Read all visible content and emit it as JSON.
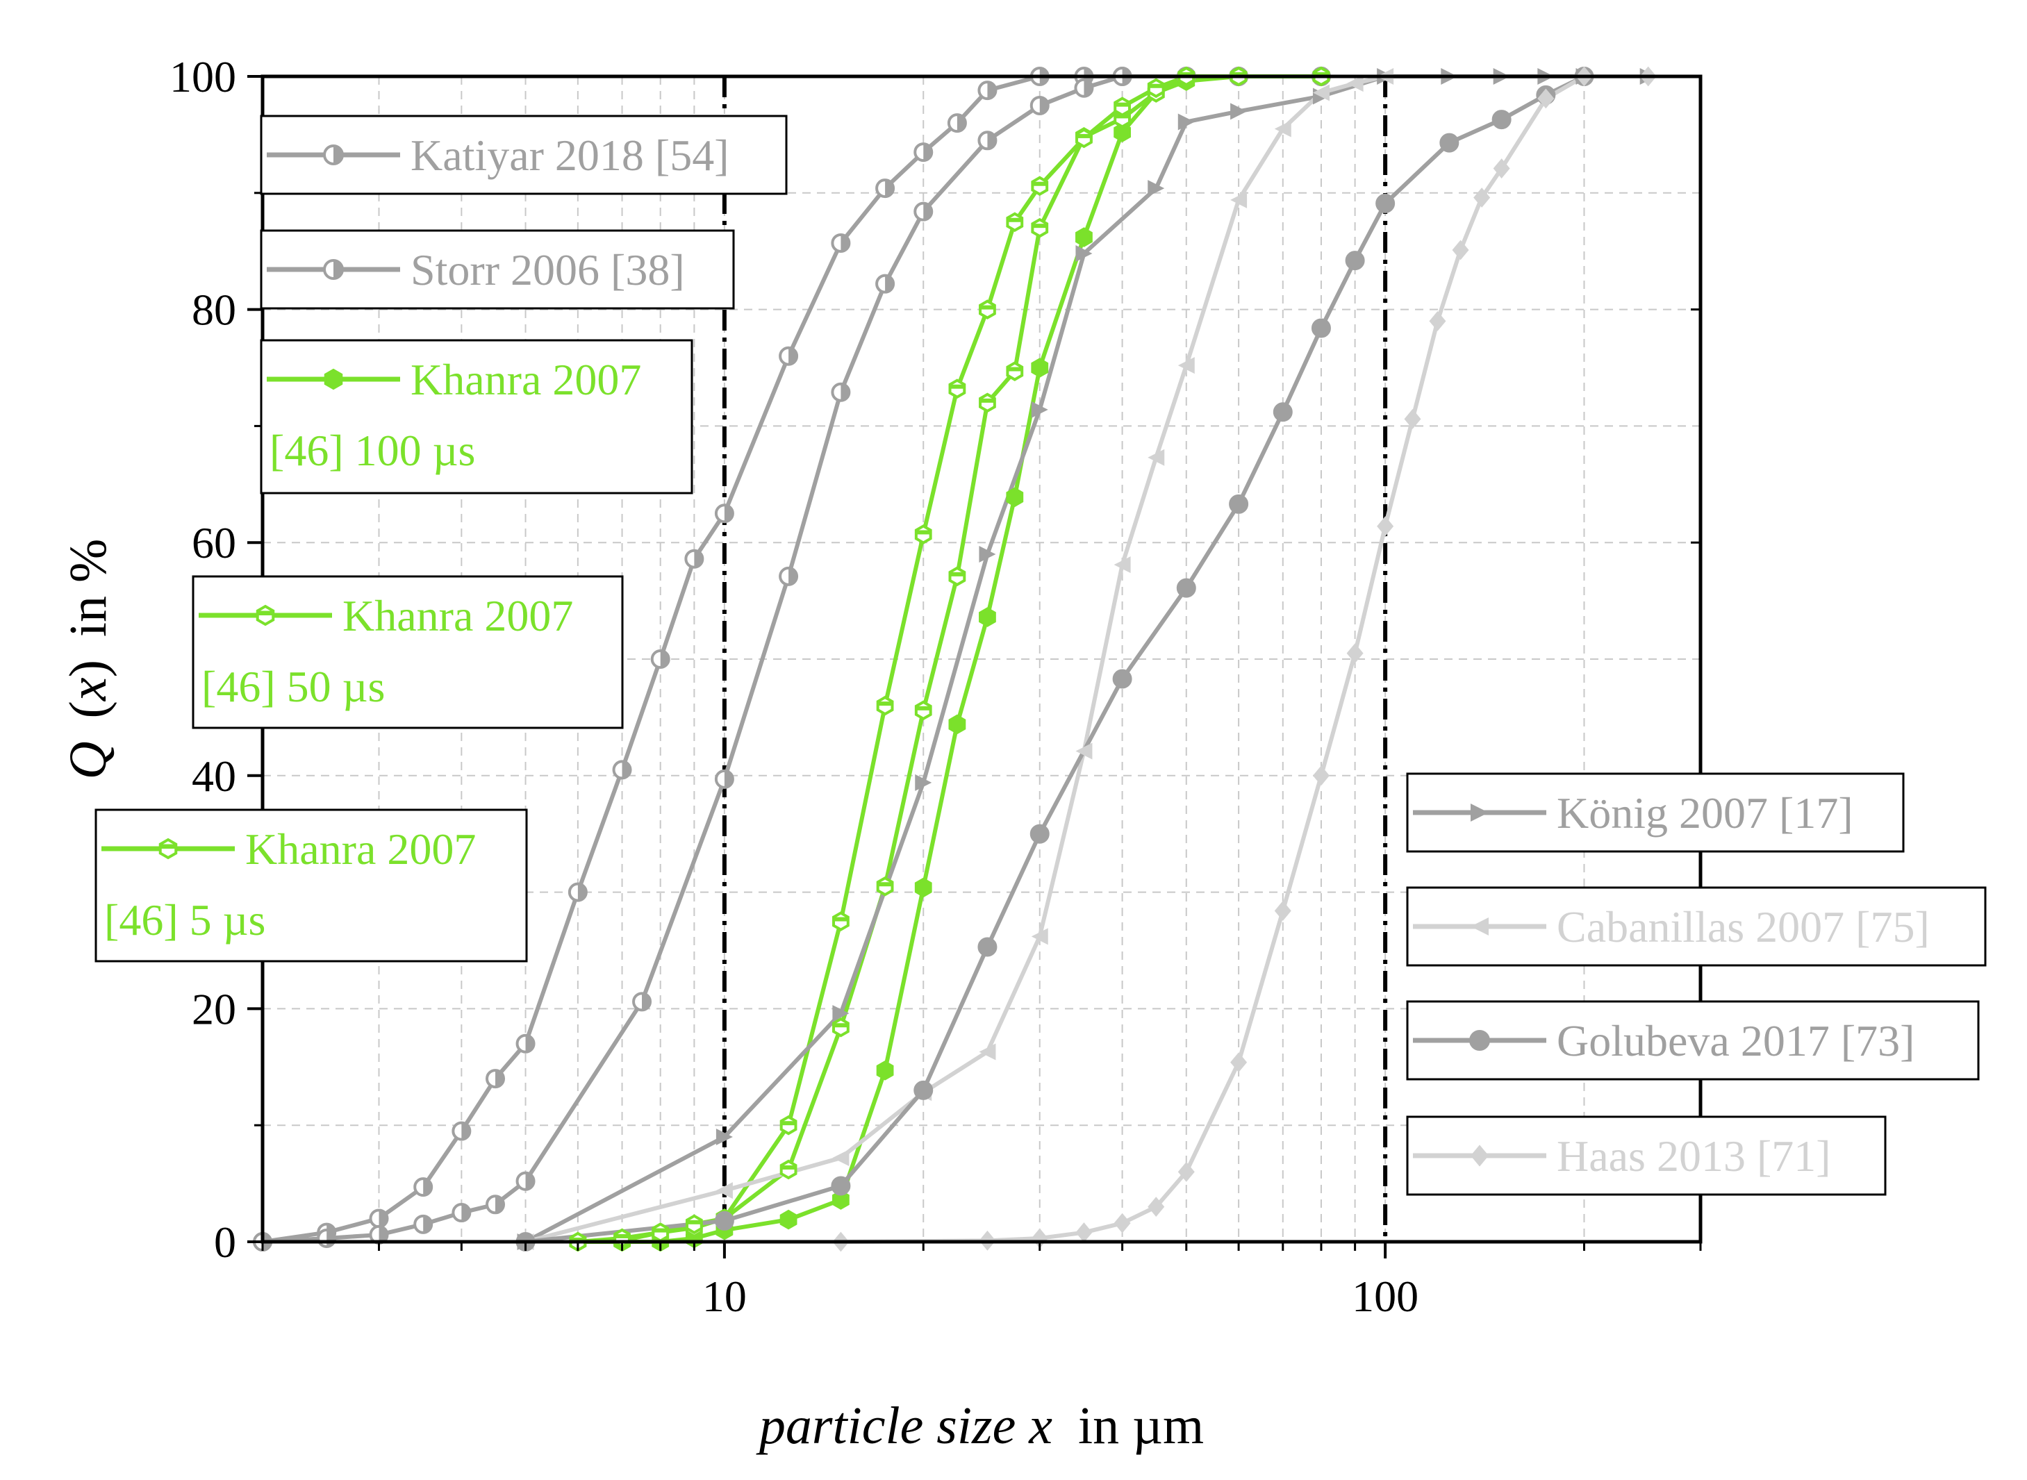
{
  "chart_data": {
    "type": "line",
    "title": "",
    "xlabel_italic": "particle size x",
    "xlabel_unit": "in µm",
    "ylabel_var": "Q",
    "ylabel_arg": "x",
    "ylabel_unit": "in %",
    "xscale": "log",
    "xlim": [
      2,
      300
    ],
    "ylim": [
      0,
      100
    ],
    "x_ticks": [
      10,
      100
    ],
    "x_tick_labels": [
      "10",
      "100"
    ],
    "y_ticks": [
      0,
      20,
      40,
      60,
      80,
      100
    ],
    "y_tick_labels": [
      "0",
      "20",
      "40",
      "60",
      "80",
      "100"
    ],
    "reference_lines_x": [
      10,
      100
    ],
    "grid": true,
    "colors": {
      "gray": "#a0a0a0",
      "light_gray": "#d2d2d2",
      "green": "#7be12b",
      "frame": "#000000"
    },
    "series": [
      {
        "name": "Katiyar 2018 [54]",
        "legend_lines": [
          "Katiyar 2018 [54]"
        ],
        "color": "#a0a0a0",
        "marker": "circle-half",
        "x": [
          2,
          2.5,
          3,
          3.5,
          4,
          4.5,
          5,
          6,
          7,
          8,
          9,
          10,
          12.5,
          15,
          17.5,
          20,
          22.5,
          25,
          30,
          35,
          40,
          50,
          60,
          80
        ],
        "values": [
          0,
          0.8,
          2,
          4.7,
          9.5,
          14,
          17,
          30,
          40.5,
          50,
          58.6,
          62.5,
          76,
          85.7,
          90.4,
          93.5,
          96,
          98.8,
          100,
          100,
          100,
          100,
          100,
          100
        ]
      },
      {
        "name": "Storr 2006 [38]",
        "legend_lines": [
          "Storr 2006 [38]"
        ],
        "color": "#a0a0a0",
        "marker": "circle-half",
        "x": [
          2,
          2.5,
          3,
          3.5,
          4,
          4.5,
          5,
          7.5,
          10,
          12.5,
          15,
          17.5,
          20,
          25,
          30,
          35,
          40,
          50,
          60,
          80
        ],
        "values": [
          0,
          0.3,
          0.6,
          1.5,
          2.5,
          3.2,
          5.2,
          20.6,
          39.7,
          57.1,
          72.9,
          82.2,
          88.4,
          94.5,
          97.5,
          99,
          100,
          100,
          100,
          100
        ]
      },
      {
        "name": "Khanra 2007 [46] 100 µs",
        "legend_lines": [
          "Khanra 2007",
          "[46] 100 µs"
        ],
        "color": "#7be12b",
        "marker": "hexagon-filled",
        "x": [
          6,
          7,
          8,
          9,
          10,
          12.5,
          15,
          17.5,
          20,
          22.5,
          25,
          27.5,
          30,
          35,
          40,
          45,
          50,
          60,
          80
        ],
        "values": [
          0,
          0,
          0,
          0.3,
          1,
          1.9,
          3.6,
          14.7,
          30.4,
          44.4,
          53.6,
          63.9,
          75,
          86.2,
          95.2,
          98.6,
          99.6,
          100,
          100
        ]
      },
      {
        "name": "Khanra 2007 [46] 50 µs",
        "legend_lines": [
          "Khanra 2007",
          "[46] 50 µs"
        ],
        "color": "#7be12b",
        "marker": "hexagon-half",
        "x": [
          6,
          7,
          8,
          9,
          10,
          12.5,
          15,
          17.5,
          20,
          22.5,
          25,
          27.5,
          30,
          35,
          40,
          45,
          50,
          60,
          80
        ],
        "values": [
          0,
          0.1,
          0.8,
          1.2,
          2,
          6.2,
          18.4,
          30.5,
          45.6,
          57.1,
          72,
          74.7,
          87,
          94.8,
          96.4,
          98.6,
          100,
          100,
          100
        ]
      },
      {
        "name": "Khanra 2007 [46] 5 µs",
        "legend_lines": [
          "Khanra 2007",
          "[46] 5 µs"
        ],
        "color": "#7be12b",
        "marker": "hexagon-half",
        "x": [
          6,
          7,
          8,
          9,
          10,
          12.5,
          15,
          17.5,
          20,
          22.5,
          25,
          27.5,
          30,
          35,
          40,
          45,
          50,
          60,
          80
        ],
        "values": [
          0,
          0.3,
          0.8,
          1.5,
          2,
          10,
          27.5,
          46,
          60.7,
          73.2,
          80,
          87.5,
          90.6,
          94.7,
          97.4,
          99,
          100,
          100,
          100
        ]
      },
      {
        "name": "König 2007 [17]",
        "legend_lines": [
          "König 2007 [17]"
        ],
        "color": "#a0a0a0",
        "marker": "triangle-right",
        "x": [
          5,
          10,
          15,
          20,
          25,
          30,
          35,
          45,
          50,
          60,
          80,
          100,
          125,
          150,
          175,
          200,
          250
        ],
        "values": [
          0,
          9,
          19.6,
          39.4,
          59,
          71.4,
          84.8,
          90.4,
          96.1,
          97,
          98.3,
          100,
          100,
          100,
          100,
          100,
          100
        ]
      },
      {
        "name": "Cabanillas 2007 [75]",
        "legend_lines": [
          "Cabanillas 2007 [75]"
        ],
        "color": "#d2d2d2",
        "marker": "triangle-left",
        "x": [
          5,
          10,
          15,
          20,
          25,
          30,
          35,
          40,
          45,
          50,
          60,
          70,
          80,
          90,
          100
        ],
        "values": [
          0,
          4.4,
          7.2,
          12.8,
          16.3,
          26.2,
          42.1,
          58.1,
          67.3,
          75.2,
          89.4,
          95.5,
          98.6,
          99.4,
          100
        ]
      },
      {
        "name": "Golubeva 2017 [73]",
        "legend_lines": [
          "Golubeva 2017 [73]"
        ],
        "color": "#a0a0a0",
        "marker": "circle-filled",
        "x": [
          5,
          10,
          15,
          20,
          25,
          30,
          40,
          50,
          60,
          70,
          80,
          90,
          100,
          125,
          150,
          175,
          200
        ],
        "values": [
          0,
          1.8,
          4.8,
          13,
          25.3,
          35,
          48.3,
          56.1,
          63.3,
          71.2,
          78.4,
          84.2,
          89.1,
          94.3,
          96.3,
          98.4,
          100
        ]
      },
      {
        "name": "Haas 2013 [71]",
        "legend_lines": [
          "Haas 2013 [71]"
        ],
        "color": "#d2d2d2",
        "marker": "diamond",
        "x": [
          15,
          25,
          30,
          35,
          40,
          45,
          50,
          60,
          70,
          80,
          90,
          100,
          110,
          120,
          130,
          140,
          150,
          175,
          200,
          250
        ],
        "values": [
          0,
          0.1,
          0.3,
          0.8,
          1.6,
          3,
          6,
          15.4,
          28.4,
          40,
          50.5,
          61.4,
          70.6,
          79,
          85.1,
          89.6,
          92.1,
          98.1,
          100,
          100
        ]
      }
    ]
  }
}
